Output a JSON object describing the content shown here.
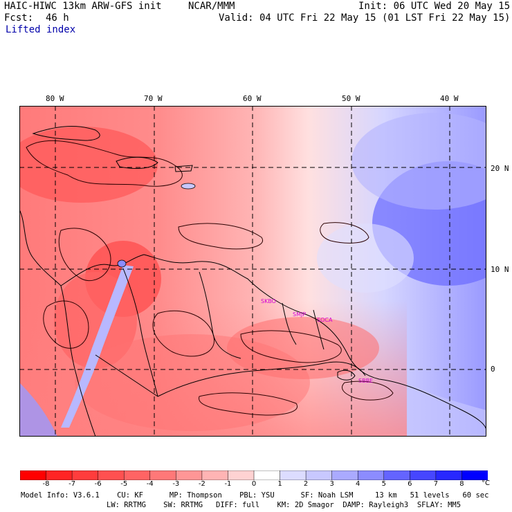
{
  "header": {
    "model": "HAIC-HIWC 13km ARW-GFS init",
    "org": "NCAR/MMM",
    "init": "Init: 06 UTC Wed 20 May 15",
    "fcst_label": "Fcst:",
    "fcst_value": "46 h",
    "valid": "Valid: 04 UTC Fri 22 May 15 (01 LST Fri 22 May 15)",
    "field": "Lifted index"
  },
  "map": {
    "lon_labels": [
      "80 W",
      "70 W",
      "60 W",
      "50 W",
      "40 W"
    ],
    "lat_labels": [
      "20 N",
      "10 N",
      "0"
    ],
    "stations": [
      "SKBO",
      "SMJP",
      "SOCA",
      "SBBE"
    ]
  },
  "colorbar": {
    "ticks": [
      "-8",
      "-7",
      "-6",
      "-5",
      "-4",
      "-3",
      "-2",
      "-1",
      "0",
      "1",
      "2",
      "3",
      "4",
      "5",
      "6",
      "7",
      "8"
    ],
    "unit": "°C",
    "colors": [
      "#ff0000",
      "#ff2424",
      "#ff3c3c",
      "#ff5050",
      "#ff6464",
      "#ff7878",
      "#ff9696",
      "#ffb4b4",
      "#ffd2d2",
      "#ffffff",
      "#dcdcff",
      "#c8c8ff",
      "#aaaaff",
      "#8c8cff",
      "#6464ff",
      "#4646ff",
      "#2828ff",
      "#0000ff"
    ]
  },
  "model_info": {
    "line1": "Model Info: V3.6.1    CU: KF      MP: Thompson    PBL: YSU      SF: Noah LSM     13 km   51 levels   60 sec",
    "line2": "LW: RRTMG    SW: RRTMG   DIFF: full    KM: 2D Smagor  DAMP: Rayleigh3  SFLAY: MM5"
  }
}
